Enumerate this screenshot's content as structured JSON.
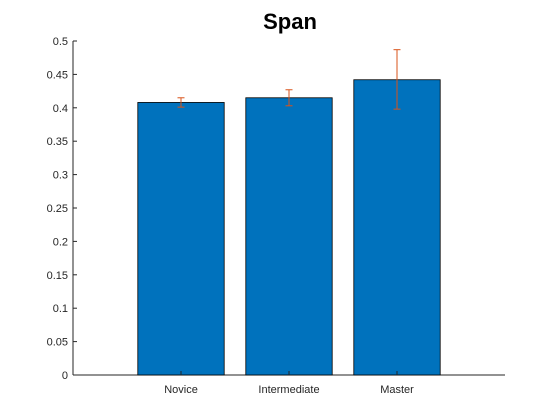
{
  "chart_data": {
    "type": "bar",
    "title": "Span",
    "xlabel": "",
    "ylabel": "",
    "categories": [
      "Novice",
      "Intermediate",
      "Master"
    ],
    "values": [
      0.408,
      0.415,
      0.442
    ],
    "error_low": [
      0.401,
      0.403,
      0.398
    ],
    "error_high": [
      0.415,
      0.427,
      0.487
    ],
    "ylim": [
      0,
      0.5
    ],
    "yticks": [
      "0",
      "0.05",
      "0.1",
      "0.15",
      "0.2",
      "0.25",
      "0.3",
      "0.35",
      "0.4",
      "0.45",
      "0.5"
    ],
    "grid": false,
    "bar_color": "#0072BD",
    "error_color": "#D95319"
  }
}
